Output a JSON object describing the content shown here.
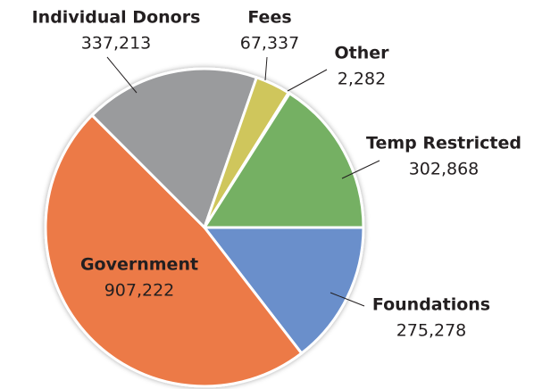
{
  "chart_data": {
    "type": "pie",
    "categories": [
      "Foundations",
      "Government",
      "Individual Donors",
      "Fees",
      "Other",
      "Temp Restricted"
    ],
    "values": [
      275278,
      907222,
      337213,
      67337,
      2282,
      302868
    ],
    "value_labels": [
      "275,278",
      "907,222",
      "337,213",
      "67,337",
      "2,282",
      "302,868"
    ],
    "colors": [
      "#6a8fcb",
      "#ec7a46",
      "#9a9b9d",
      "#cfc65c",
      "#4f86cf",
      "#74b064"
    ]
  }
}
